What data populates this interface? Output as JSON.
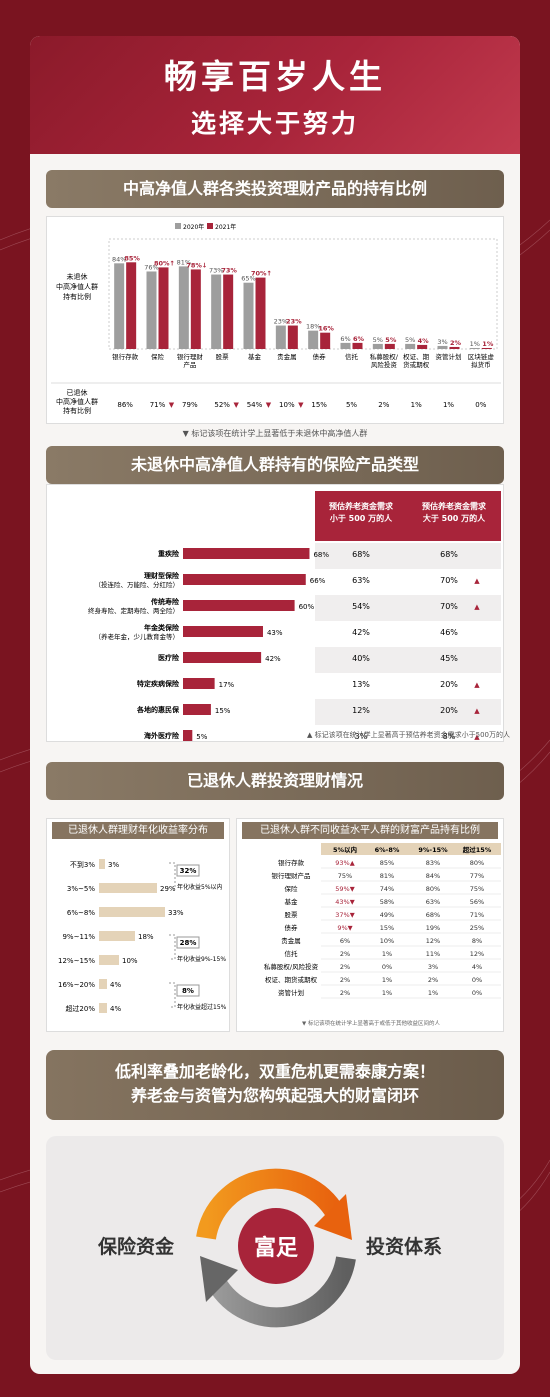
{
  "header": {
    "title": "畅享百岁人生",
    "subtitle": "选择大于努力"
  },
  "section1": {
    "banner": "中高净值人群各类投资理财产品的持有比例",
    "row_label": "已退休\n中高净值人群\n持有比例",
    "row_label_lines": [
      "已退休",
      "中高净值人群",
      "持有比例"
    ],
    "footnote": "▼ 标记该项在统计学上显著低于未退休中高净值人群"
  },
  "section2": {
    "banner": "未退休中高净值人群持有的保险产品类型",
    "col_headers": [
      "预估养老资金需求小于 500 万的人",
      "预估养老资金需求大于 500 万的人"
    ],
    "col_header_lines": [
      [
        "预估养老资金需求",
        "小于 500 万的人"
      ],
      [
        "预估养老资金需求",
        "大于 500 万的人"
      ]
    ],
    "footnote": "▲ 标记该项在统计学上显著高于预估养老资金需求小于500万的人"
  },
  "section3": {
    "banner": "已退休人群投资理财情况",
    "left_title": "已退休人群理财年化收益率分布",
    "right_title": "已退休人群不同收益水平人群的财富产品持有比例",
    "footnote": "▼ 标记该项在统计学上显著高于或低于其他收益区间的人"
  },
  "footer": {
    "line1": "低利率叠加老龄化，双重危机更需泰康方案！",
    "line2": "养老金与资管为您构筑起强大的财富闭环",
    "left_label": "保险资金",
    "center_label": "富足",
    "right_label": "投资体系"
  },
  "colors": {
    "gray": "#9e9e9e",
    "red": "#a8243a",
    "brown": "#867460",
    "beige": "#e4d3b8"
  },
  "chart_data": [
    {
      "type": "bar",
      "title": "中高净值人群各类投资理财产品的持有比例",
      "categories": [
        "银行存款",
        "保险",
        "银行理财产品",
        "股票",
        "基金",
        "贵金属",
        "债券",
        "信托",
        "私募股权/风险投资",
        "权证、期货或期权",
        "资管计划",
        "区块链虚拟货币"
      ],
      "category_lines": [
        [
          "银行存款"
        ],
        [
          "保险"
        ],
        [
          "银行理财",
          "产品"
        ],
        [
          "股票"
        ],
        [
          "基金"
        ],
        [
          "贵金属"
        ],
        [
          "债券"
        ],
        [
          "信托"
        ],
        [
          "私募股权/",
          "风险投资"
        ],
        [
          "权证、期",
          "货或期权"
        ],
        [
          "资管计划"
        ],
        [
          "区块链虚",
          "拟货币"
        ]
      ],
      "series": [
        {
          "name": "2020年",
          "values": [
            84,
            76,
            81,
            73,
            65,
            23,
            18,
            6,
            5,
            5,
            3,
            1
          ]
        },
        {
          "name": "2021年",
          "values": [
            85,
            80,
            78,
            73,
            70,
            23,
            16,
            6,
            5,
            4,
            2,
            1
          ]
        }
      ],
      "value_labels": [
        [
          "84%",
          "85%"
        ],
        [
          "76%",
          "80%"
        ],
        [
          "81%",
          "78%"
        ],
        [
          "73%",
          "73%"
        ],
        [
          "65%",
          "70%"
        ],
        [
          "23%",
          "23%"
        ],
        [
          "18%",
          "16%"
        ],
        [
          "6%",
          "6%"
        ],
        [
          "5%",
          "5%"
        ],
        [
          "5%",
          "4%"
        ],
        [
          "3%",
          "2%"
        ],
        [
          "1%",
          "1%"
        ]
      ],
      "arrows": [
        "",
        "↑",
        "↓",
        "",
        "↑",
        "",
        "",
        "",
        "",
        "",
        "",
        ""
      ],
      "retired_row": [
        "86%",
        "71%",
        "79%",
        "52%",
        "54%",
        "10%",
        "15%",
        "5%",
        "2%",
        "1%",
        "1%",
        "0%"
      ],
      "retired_marks": [
        "",
        "▼",
        "",
        "▼",
        "▼",
        "▼",
        "",
        "",
        "",
        "",
        "",
        ""
      ],
      "ylim": [
        0,
        100
      ],
      "legend": "top"
    },
    {
      "type": "bar",
      "orientation": "horizontal",
      "title": "未退休中高净值人群持有的保险产品类型",
      "categories": [
        "重疾险",
        "理财型保险",
        "传统寿险",
        "年金类保险",
        "医疗险",
        "特定疾病保险",
        "各地的惠民保",
        "海外医疗险"
      ],
      "category_notes": [
        "",
        "（投连险、万能险、分红险）",
        "终身寿险、定期寿险、两全险）",
        "（养老年金，少儿教育金等）",
        "",
        "",
        "",
        ""
      ],
      "values": [
        68,
        66,
        60,
        43,
        42,
        17,
        15,
        5
      ],
      "value_labels": [
        "68%",
        "66%",
        "60%",
        "43%",
        "42%",
        "17%",
        "15%",
        "5%"
      ],
      "table": {
        "lt500": [
          "68%",
          "63%",
          "54%",
          "42%",
          "40%",
          "13%",
          "12%",
          "3%"
        ],
        "gt500": [
          "68%",
          "70%",
          "70%",
          "46%",
          "45%",
          "20%",
          "20%",
          "8%"
        ],
        "gt500_marks": [
          "",
          "▲",
          "▲",
          "",
          "",
          "▲",
          "▲",
          "▲"
        ]
      },
      "xlim": [
        0,
        100
      ]
    },
    {
      "type": "bar",
      "orientation": "horizontal",
      "title": "已退休人群理财年化收益率分布",
      "categories": [
        "不到3%",
        "3%~5%",
        "6%~8%",
        "9%~11%",
        "12%~15%",
        "16%~20%",
        "超过20%"
      ],
      "values": [
        3,
        29,
        33,
        18,
        10,
        4,
        4
      ],
      "value_labels": [
        "3%",
        "29%",
        "33%",
        "18%",
        "10%",
        "4%",
        "4%"
      ],
      "groups": [
        {
          "label": "32%",
          "note": "年化收益5%以内"
        },
        {
          "label": "28%",
          "note": "年化收益9%-15%"
        },
        {
          "label": "8%",
          "note": "年化收益超过15%"
        }
      ],
      "xlim": [
        0,
        40
      ]
    },
    {
      "type": "table",
      "title": "已退休人群不同收益水平人群的财富产品持有比例",
      "columns": [
        "5%以内",
        "6%-8%",
        "9%-15%",
        "超过15%"
      ],
      "rows": [
        "银行存款",
        "银行理财产品",
        "保险",
        "基金",
        "股票",
        "债券",
        "贵金属",
        "信托",
        "私募股权/风险投资",
        "权证、期货或期权",
        "资管计划"
      ],
      "values": [
        [
          "93%▲",
          "85%",
          "83%",
          "80%"
        ],
        [
          "75%",
          "81%",
          "84%",
          "77%"
        ],
        [
          "59%▼",
          "74%",
          "80%",
          "75%"
        ],
        [
          "43%▼",
          "58%",
          "63%",
          "56%"
        ],
        [
          "37%▼",
          "49%",
          "68%",
          "71%"
        ],
        [
          "9%▼",
          "15%",
          "19%",
          "25%"
        ],
        [
          "6%",
          "10%",
          "12%",
          "8%"
        ],
        [
          "2%",
          "1%",
          "11%",
          "12%"
        ],
        [
          "2%",
          "0%",
          "3%",
          "4%"
        ],
        [
          "2%",
          "1%",
          "2%",
          "0%"
        ],
        [
          "2%",
          "1%",
          "1%",
          "0%"
        ]
      ]
    }
  ]
}
